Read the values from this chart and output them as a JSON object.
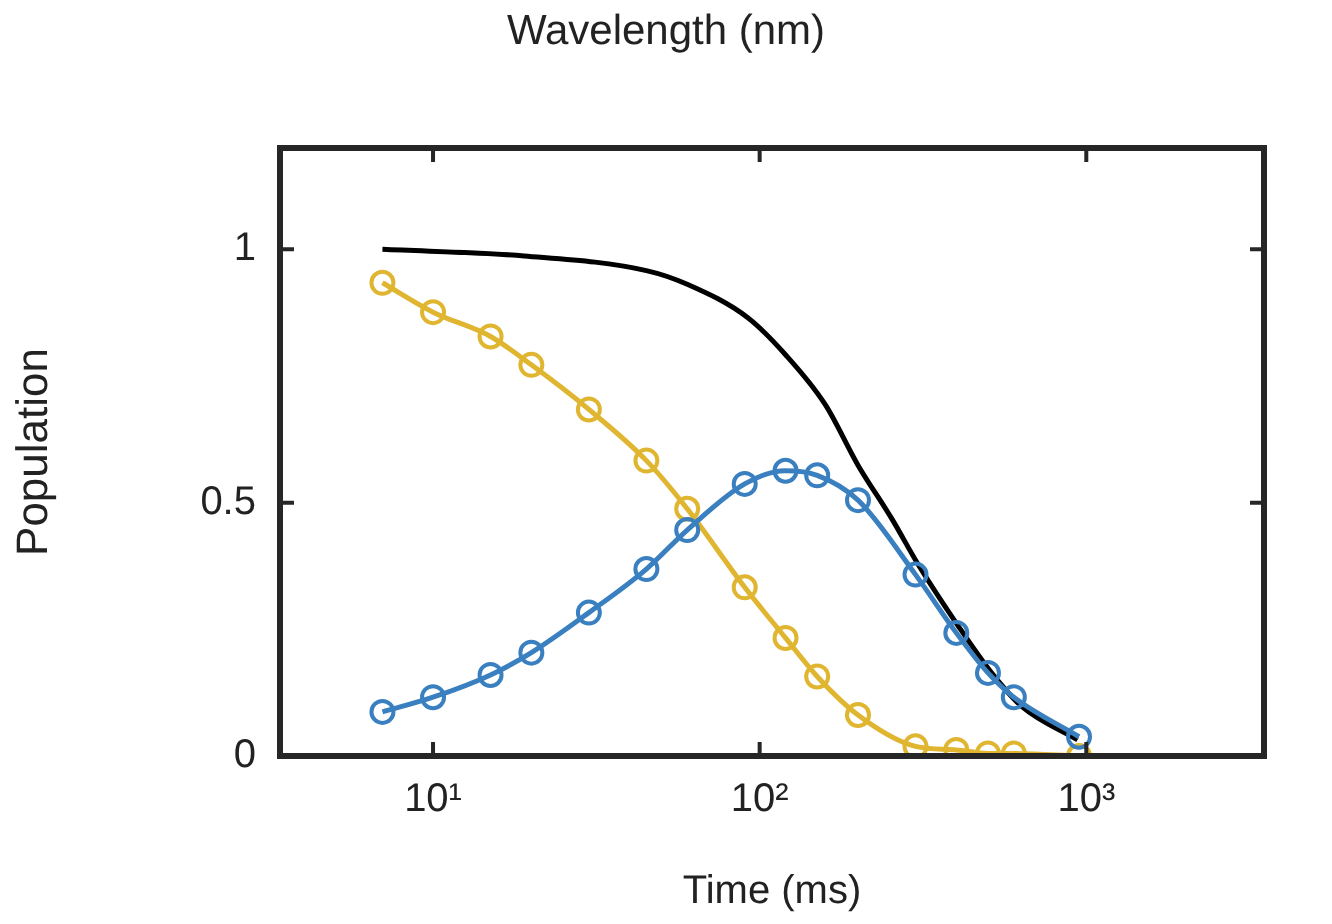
{
  "chart_data": {
    "type": "line",
    "xlabel": "Time (ms)",
    "ylabel": "Population",
    "annotations": [
      "Wavelength (nm)"
    ],
    "log": "x",
    "xlim": [
      3.4,
      3500
    ],
    "xticks": [
      {
        "value": 10,
        "label": "10¹"
      },
      {
        "value": 100,
        "label": "10²"
      },
      {
        "value": 1000,
        "label": "10³"
      }
    ],
    "ylim": [
      0,
      1.2
    ],
    "yticks": [
      0,
      0.5,
      1
    ],
    "grid": false,
    "legend": false,
    "marker": "circle",
    "line_style": "solid",
    "series": [
      {
        "color": "#000000",
        "marker": "none",
        "x": [
          7,
          19,
          45,
          60,
          92,
          120,
          159,
          200,
          254,
          307,
          405,
          513,
          634,
          940
        ],
        "values": [
          1.0,
          0.987,
          0.958,
          0.931,
          0.865,
          0.792,
          0.693,
          0.574,
          0.468,
          0.376,
          0.257,
          0.164,
          0.098,
          0.032
        ]
      },
      {
        "color": "#e0b530",
        "x": [
          7,
          10,
          15,
          20,
          30,
          45,
          60,
          90,
          120,
          150,
          200,
          300,
          400,
          500,
          600,
          950
        ],
        "values": [
          0.934,
          0.876,
          0.828,
          0.772,
          0.684,
          0.583,
          0.488,
          0.333,
          0.233,
          0.157,
          0.081,
          0.019,
          0.012,
          0.005,
          0.005,
          0
        ]
      },
      {
        "color": "#3a80c0",
        "x": [
          7,
          10,
          15,
          20,
          30,
          45,
          60,
          90,
          120,
          150,
          200,
          300,
          400,
          500,
          600,
          950
        ],
        "values": [
          0.087,
          0.116,
          0.16,
          0.204,
          0.283,
          0.369,
          0.446,
          0.537,
          0.563,
          0.554,
          0.505,
          0.358,
          0.243,
          0.164,
          0.116,
          0.038
        ]
      }
    ]
  }
}
